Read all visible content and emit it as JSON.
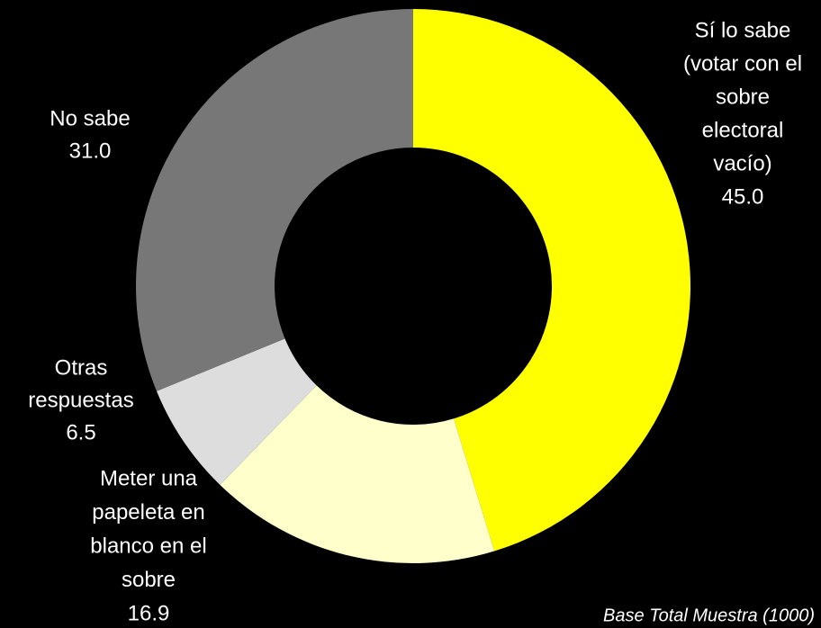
{
  "chart_data": {
    "type": "donut",
    "categories": [
      [
        "Sí lo sabe",
        "(votar con el",
        "sobre",
        "electoral",
        "vacío)"
      ],
      [
        "Meter una",
        "papeleta en",
        "blanco en el",
        "sobre"
      ],
      [
        "Otras",
        "respuestas"
      ],
      [
        "No sabe"
      ]
    ],
    "values": [
      45.0,
      16.9,
      6.5,
      31.0
    ],
    "value_labels": [
      "45.0",
      "16.9",
      "6.5",
      "31.0"
    ],
    "colors": [
      "#ffff00",
      "#ffffcc",
      "#dddddd",
      "#777777"
    ],
    "annotation": "Base Total Muestra (1000)"
  }
}
